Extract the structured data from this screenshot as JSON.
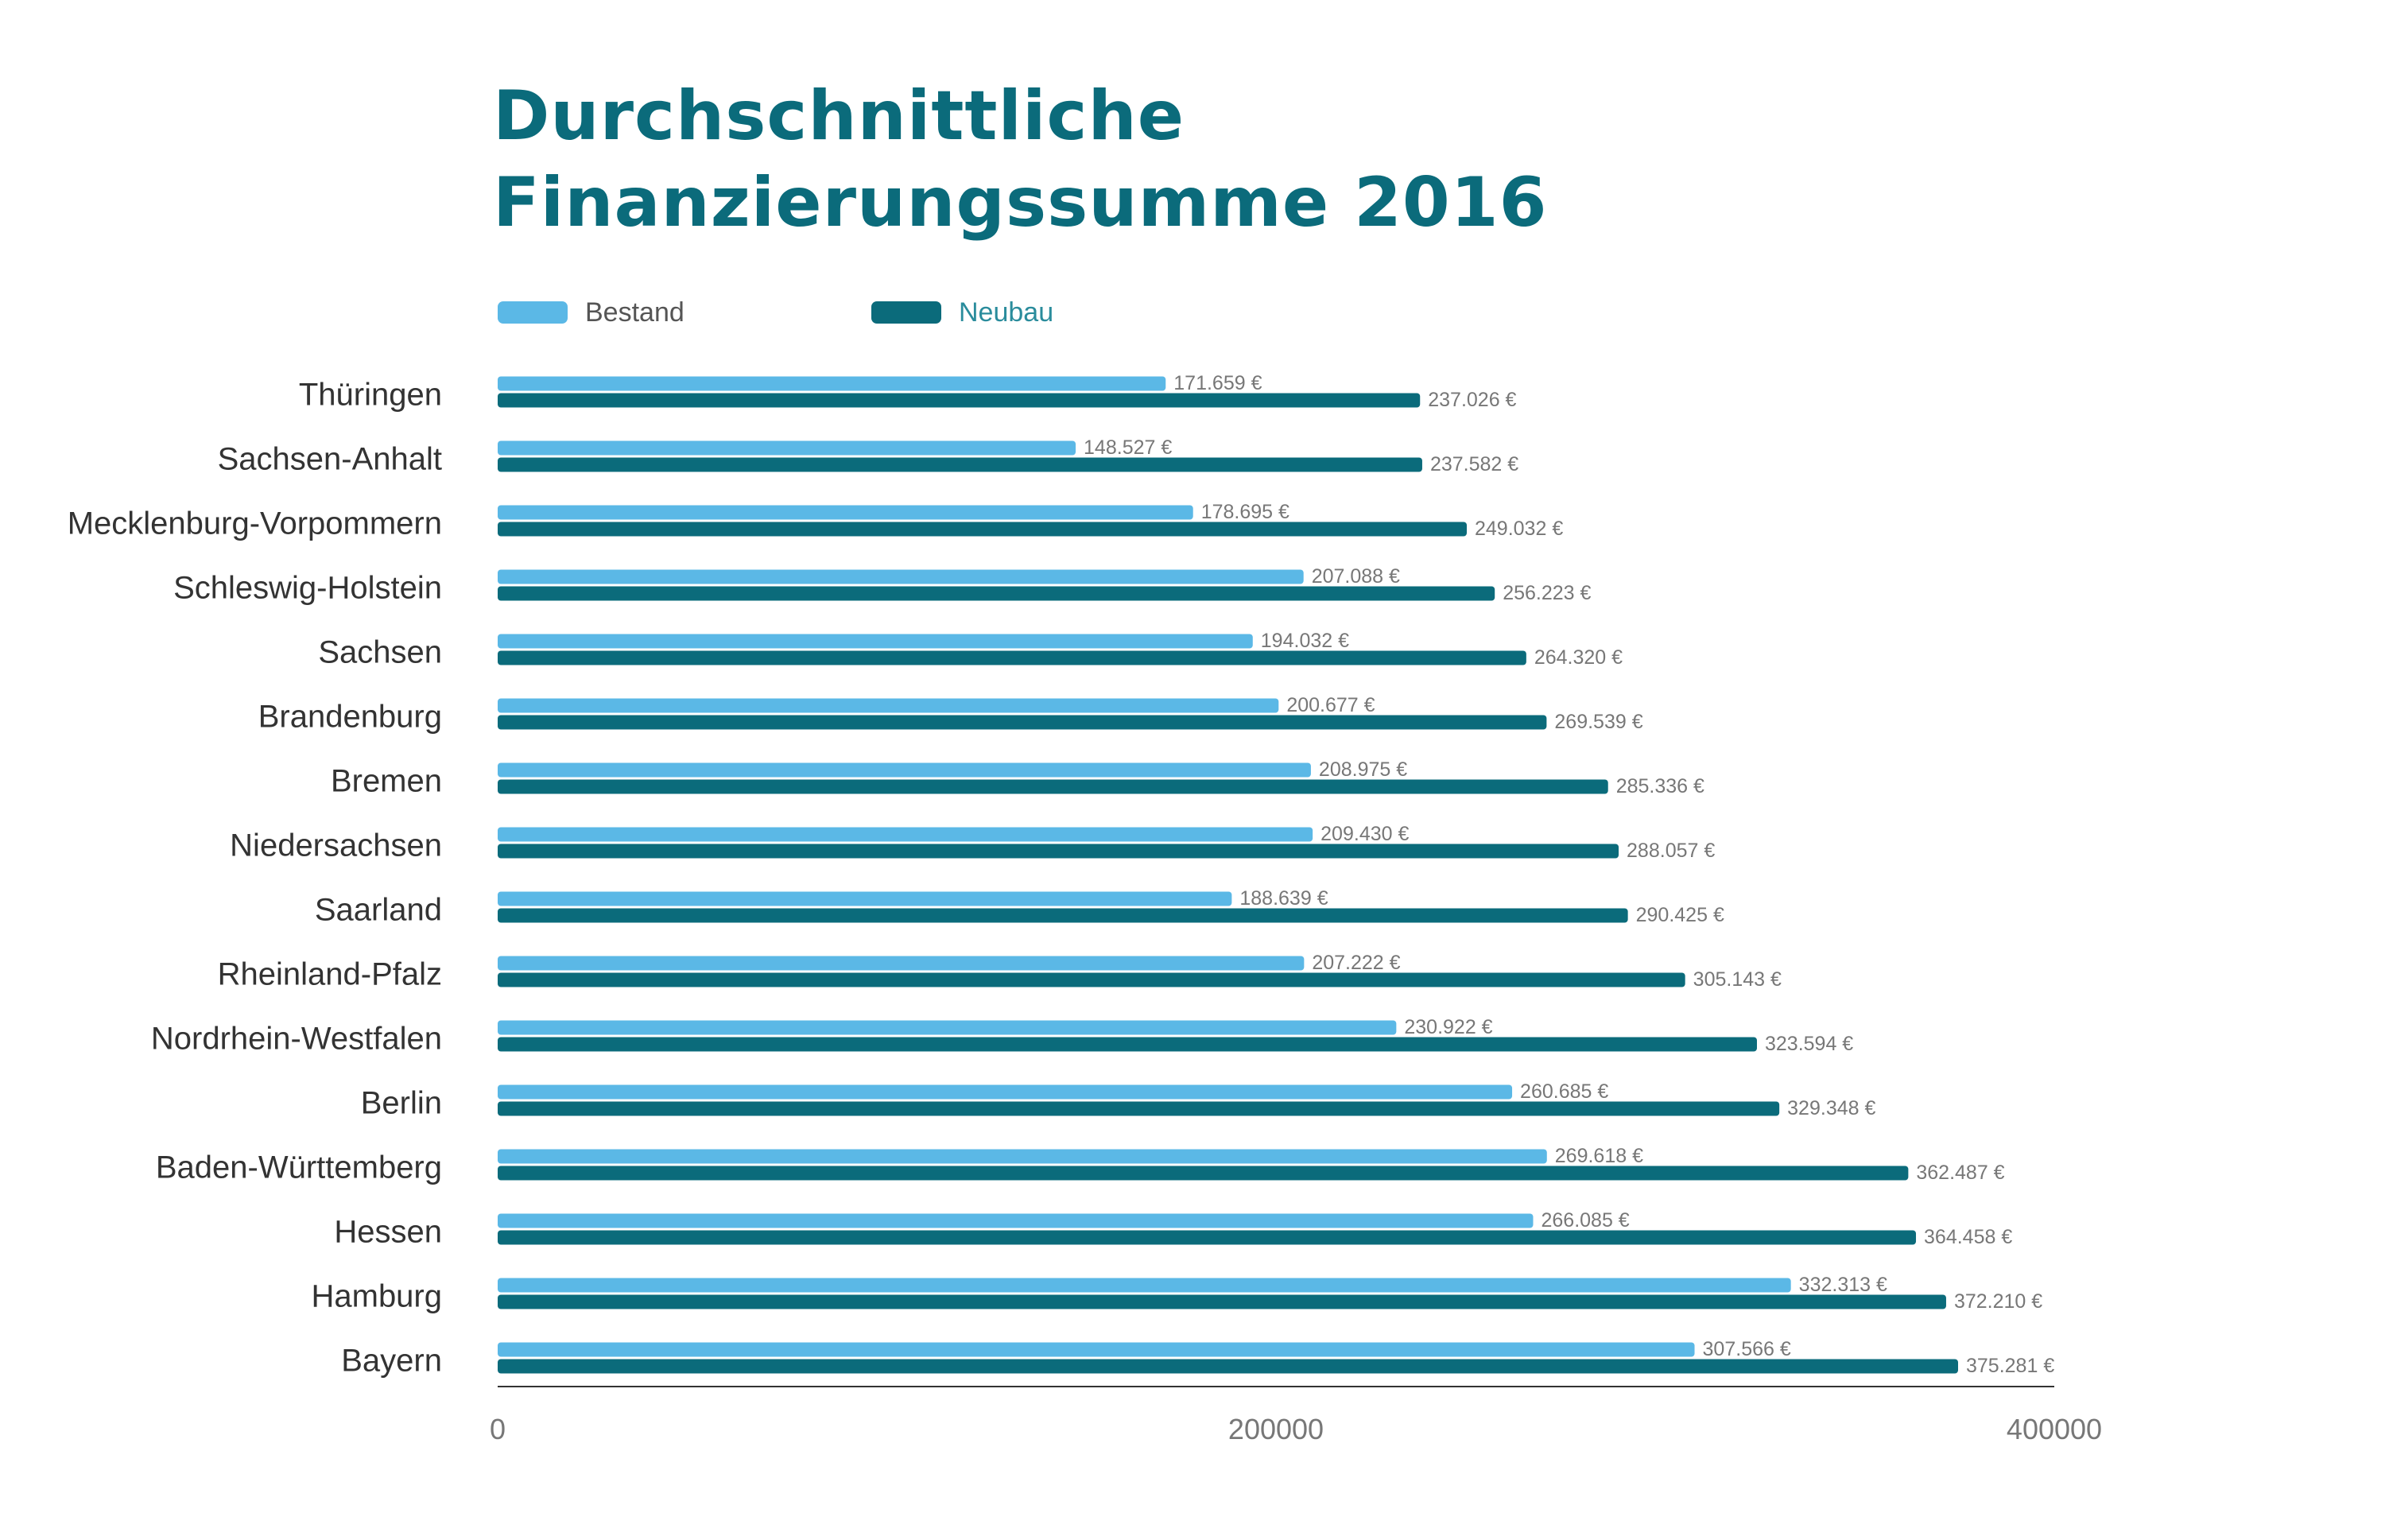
{
  "title_line1": "Durchschnittliche",
  "title_line2": "Finanzierungssumme 2016",
  "colors": {
    "bestand": "#5bb8e6",
    "neubau": "#0b6b7b",
    "title": "#0b6b7b",
    "axis": "#333333",
    "label": "#333333",
    "value_label": "#777777",
    "tick": "#777777"
  },
  "legend": [
    {
      "label": "Bestand",
      "color": "#5bb8e6",
      "text_color": "#555555"
    },
    {
      "label": "Neubau",
      "color": "#0b6b7b",
      "text_color": "#2a8c9c"
    }
  ],
  "chart_data": {
    "type": "bar",
    "orientation": "horizontal",
    "title": "Durchschnittliche Finanzierungssumme 2016",
    "categories": [
      "Thüringen",
      "Sachsen-Anhalt",
      "Mecklenburg-Vorpommern",
      "Schleswig-Holstein",
      "Sachsen",
      "Brandenburg",
      "Bremen",
      "Niedersachsen",
      "Saarland",
      "Rheinland-Pfalz",
      "Nordrhein-Westfalen",
      "Berlin",
      "Baden-Württemberg",
      "Hessen",
      "Hamburg",
      "Bayern"
    ],
    "series": [
      {
        "name": "Bestand",
        "color": "#5bb8e6",
        "values": [
          171659,
          148527,
          178695,
          207088,
          194032,
          200677,
          208975,
          209430,
          188639,
          207222,
          230922,
          260685,
          269618,
          266085,
          332313,
          307566
        ],
        "labels": [
          "171.659 €",
          "148.527 €",
          "178.695 €",
          "207.088 €",
          "194.032 €",
          "200.677 €",
          "208.975 €",
          "209.430 €",
          "188.639 €",
          "207.222 €",
          "230.922 €",
          "260.685 €",
          "269.618 €",
          "266.085 €",
          "332.313 €",
          "307.566 €"
        ]
      },
      {
        "name": "Neubau",
        "color": "#0b6b7b",
        "values": [
          237026,
          237582,
          249032,
          256223,
          264320,
          269539,
          285336,
          288057,
          290425,
          305143,
          323594,
          329348,
          362487,
          364458,
          372210,
          375281
        ],
        "labels": [
          "237.026 €",
          "237.582 €",
          "249.032 €",
          "256.223 €",
          "264.320 €",
          "269.539 €",
          "285.336 €",
          "288.057 €",
          "290.425 €",
          "305.143 €",
          "323.594 €",
          "329.348 €",
          "362.487 €",
          "364.458 €",
          "372.210 €",
          "375.281 €"
        ]
      }
    ],
    "xlim": [
      0,
      400000
    ],
    "xticks": [
      0,
      200000,
      400000
    ],
    "xtick_labels": [
      "0",
      "200000",
      "400000"
    ],
    "grid": false,
    "legend_position": "top-left"
  }
}
